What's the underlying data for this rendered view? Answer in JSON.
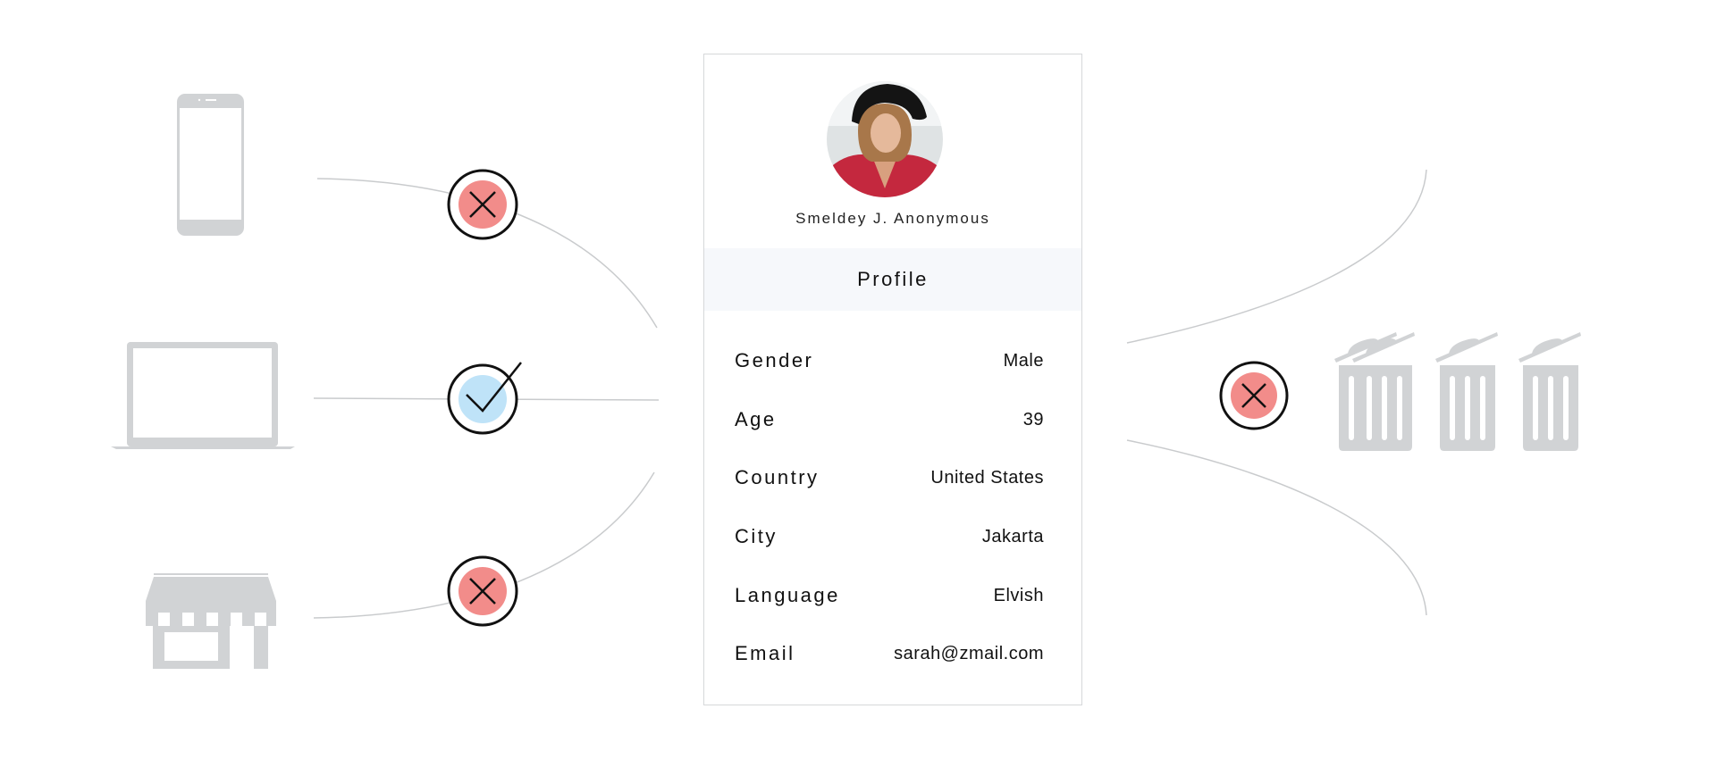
{
  "colors": {
    "device_gray": "#d1d3d5",
    "reject_fill": "#f28c8a",
    "accept_fill": "#bfe3f8",
    "line": "#c9cbcd",
    "band_bg": "#f6f8fb"
  },
  "channels": [
    {
      "icon": "smartphone-icon",
      "status": "rejected",
      "status_icon": "x-icon"
    },
    {
      "icon": "laptop-icon",
      "status": "accepted",
      "status_icon": "check-icon"
    },
    {
      "icon": "storefront-icon",
      "status": "rejected",
      "status_icon": "x-icon"
    }
  ],
  "output": {
    "status": "rejected",
    "status_icon": "x-icon",
    "destinations": [
      "trash-icon",
      "trash-icon",
      "trash-icon"
    ]
  },
  "profile": {
    "name": "Smeldey J. Anonymous",
    "section_title": "Profile",
    "fields": [
      {
        "label": "Gender",
        "value": "Male"
      },
      {
        "label": "Age",
        "value": "39"
      },
      {
        "label": "Country",
        "value": "United States"
      },
      {
        "label": "City",
        "value": "Jakarta"
      },
      {
        "label": "Language",
        "value": "Elvish"
      },
      {
        "label": "Email",
        "value": "sarah@zmail.com"
      }
    ]
  }
}
